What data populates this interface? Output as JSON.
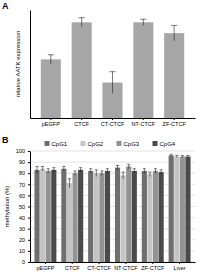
{
  "chart_data": [
    {
      "type": "bar",
      "title": "A",
      "y_label": "relative AATK expression",
      "categories": [
        "pEGFP",
        "CTCF",
        "CT-CTCF",
        "NT-CTCF",
        "ZF-CTCF"
      ],
      "values": [
        0.38,
        0.62,
        0.23,
        0.62,
        0.55
      ],
      "errors": [
        0.03,
        0.03,
        0.07,
        0.02,
        0.05
      ],
      "color": "#a6a6a6",
      "ylim": [
        0,
        0.7
      ],
      "tick_labels": "x"
    },
    {
      "type": "bar",
      "title": "B",
      "y_label": "methylation (%)",
      "categories": [
        "pEGFP",
        "CTCF",
        "CT-CTCF",
        "NT-CTCF",
        "ZF-CTCF",
        "Liver"
      ],
      "series": [
        {
          "name": "CpG1",
          "color": "#6e6e6e",
          "values": [
            83,
            84,
            82,
            85,
            82,
            96
          ],
          "errors": [
            3,
            2,
            2,
            2,
            2,
            1
          ]
        },
        {
          "name": "CpG2",
          "color": "#c4c4c4",
          "values": [
            84,
            71,
            80,
            78,
            79,
            95
          ],
          "errors": [
            2,
            4,
            3,
            3,
            2,
            1
          ]
        },
        {
          "name": "CpG3",
          "color": "#939393",
          "values": [
            82,
            80,
            80,
            86,
            82,
            95
          ],
          "errors": [
            2,
            2,
            2,
            2,
            2,
            1
          ]
        },
        {
          "name": "CpG4",
          "color": "#4a4a4a",
          "values": [
            83,
            83,
            82,
            82,
            81,
            95
          ],
          "errors": [
            2,
            2,
            2,
            2,
            2,
            1
          ]
        }
      ],
      "ylim": [
        0,
        100
      ],
      "yticks": [
        0,
        10,
        20,
        30,
        40,
        50,
        60,
        70,
        80,
        90,
        100
      ],
      "grid": true,
      "legend": "top"
    }
  ]
}
